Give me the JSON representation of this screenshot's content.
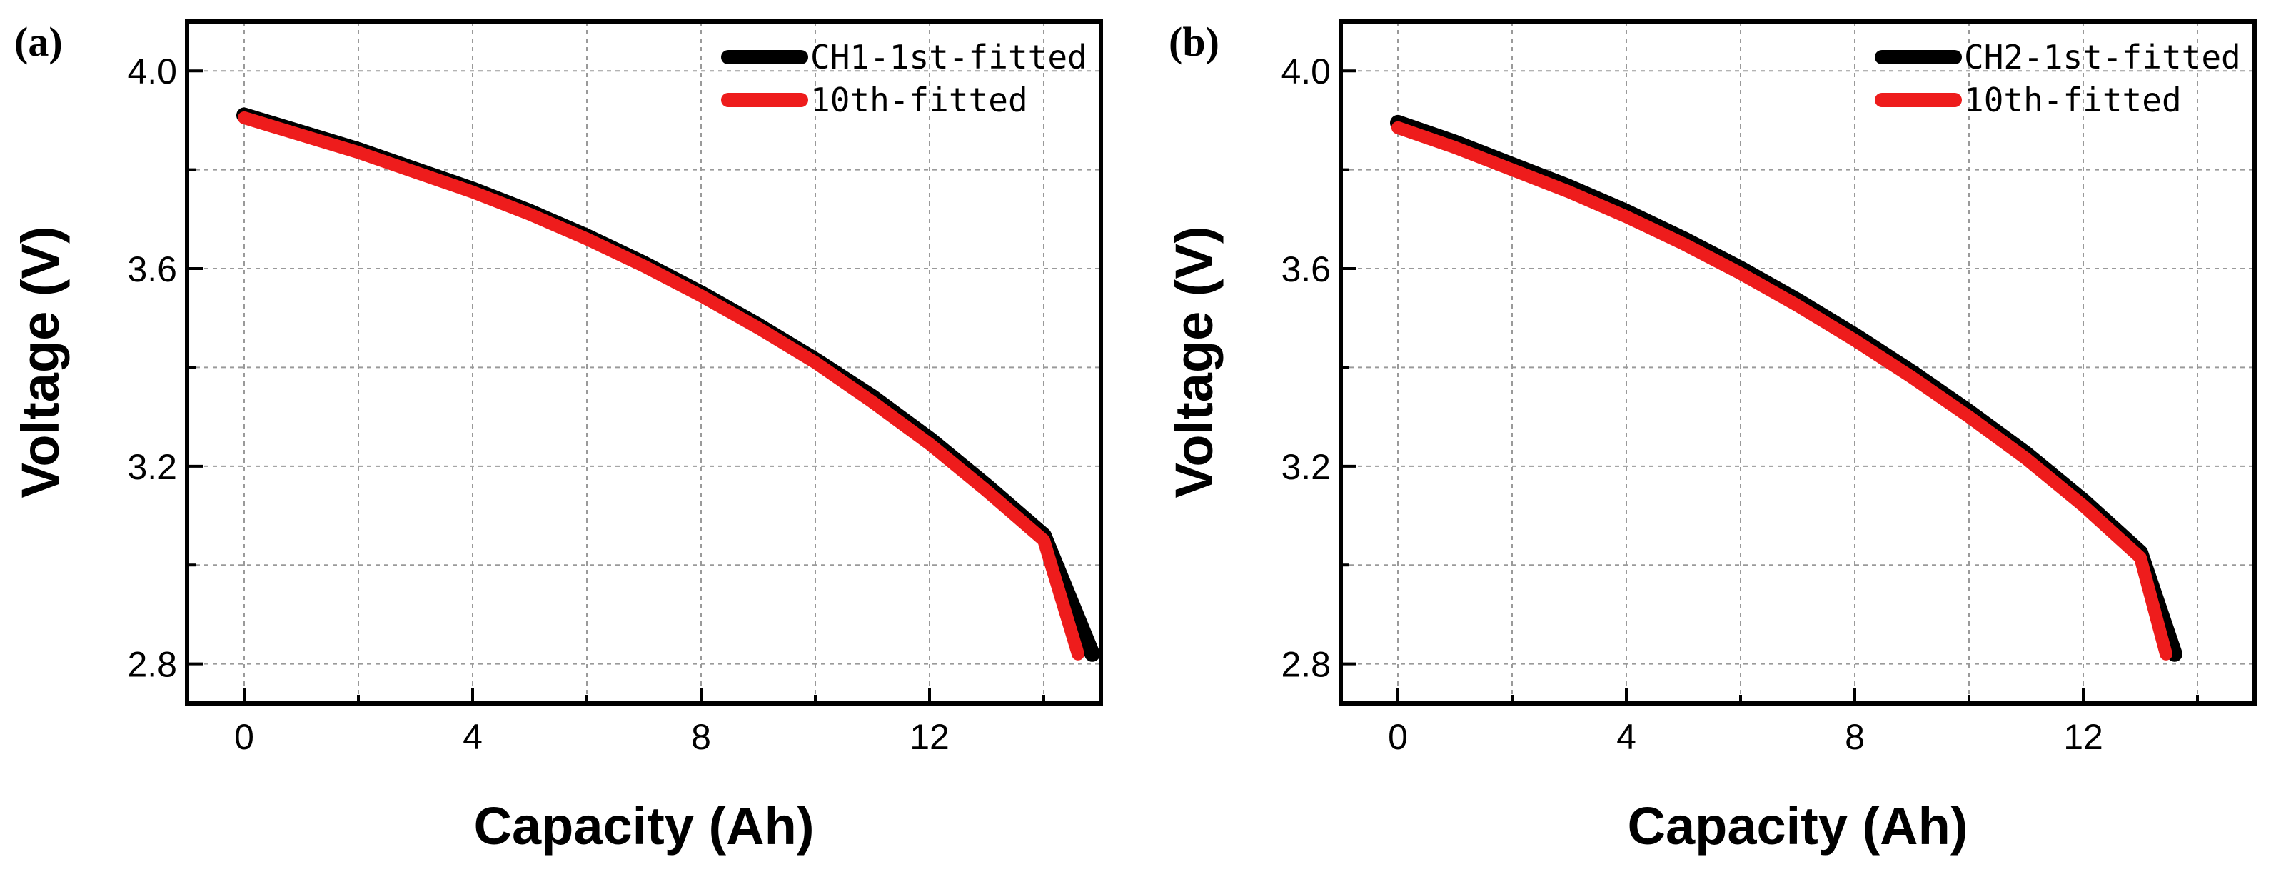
{
  "chart_data": [
    {
      "type": "line",
      "panel_label": "(a)",
      "title": "",
      "xlabel": "Capacity (Ah)",
      "ylabel": "Voltage (V)",
      "xlim": [
        -1,
        15
      ],
      "ylim": [
        2.72,
        4.1
      ],
      "xticks": [
        0,
        4,
        8,
        12
      ],
      "xtick_labels": [
        "0",
        "4",
        "8",
        "12"
      ],
      "yticks": [
        2.8,
        3.2,
        3.6,
        4.0
      ],
      "ytick_labels": [
        "2.8",
        "3.2",
        "3.6",
        "4.0"
      ],
      "grid": true,
      "legend_position": "top-right",
      "series": [
        {
          "name": "CH1-1st-fitted",
          "color": "#000000",
          "x": [
            0,
            1,
            2,
            3,
            4,
            5,
            6,
            7,
            8,
            9,
            10,
            11,
            12,
            13,
            14,
            14.85
          ],
          "y": [
            3.91,
            3.875,
            3.84,
            3.8,
            3.76,
            3.715,
            3.665,
            3.61,
            3.55,
            3.485,
            3.415,
            3.34,
            3.255,
            3.16,
            3.06,
            2.82
          ]
        },
        {
          "name": "10th-fitted",
          "color": "#ee1c1c",
          "x": [
            0,
            1,
            2,
            3,
            4,
            5,
            6,
            7,
            8,
            9,
            10,
            11,
            12,
            13,
            14,
            14.6
          ],
          "y": [
            3.905,
            3.87,
            3.835,
            3.795,
            3.755,
            3.71,
            3.66,
            3.605,
            3.545,
            3.48,
            3.41,
            3.33,
            3.245,
            3.15,
            3.05,
            2.82
          ]
        }
      ]
    },
    {
      "type": "line",
      "panel_label": "(b)",
      "title": "",
      "xlabel": "Capacity (Ah)",
      "ylabel": "Voltage (V)",
      "xlim": [
        -1,
        15
      ],
      "ylim": [
        2.72,
        4.1
      ],
      "xticks": [
        0,
        4,
        8,
        12
      ],
      "xtick_labels": [
        "0",
        "4",
        "8",
        "12"
      ],
      "yticks": [
        2.8,
        3.2,
        3.6,
        4.0
      ],
      "ytick_labels": [
        "2.8",
        "3.2",
        "3.6",
        "4.0"
      ],
      "grid": true,
      "legend_position": "top-right",
      "series": [
        {
          "name": "CH2-1st-fitted",
          "color": "#000000",
          "x": [
            0,
            1,
            2,
            3,
            4,
            5,
            6,
            7,
            8,
            9,
            10,
            11,
            12,
            13,
            13.6
          ],
          "y": [
            3.895,
            3.855,
            3.81,
            3.765,
            3.715,
            3.66,
            3.6,
            3.535,
            3.465,
            3.39,
            3.31,
            3.225,
            3.13,
            3.025,
            2.82
          ]
        },
        {
          "name": "10th-fitted",
          "color": "#ee1c1c",
          "x": [
            0,
            1,
            2,
            3,
            4,
            5,
            6,
            7,
            8,
            9,
            10,
            11,
            12,
            13,
            13.45
          ],
          "y": [
            3.885,
            3.845,
            3.8,
            3.755,
            3.705,
            3.65,
            3.59,
            3.525,
            3.455,
            3.38,
            3.3,
            3.215,
            3.12,
            3.015,
            2.82
          ]
        }
      ]
    }
  ]
}
